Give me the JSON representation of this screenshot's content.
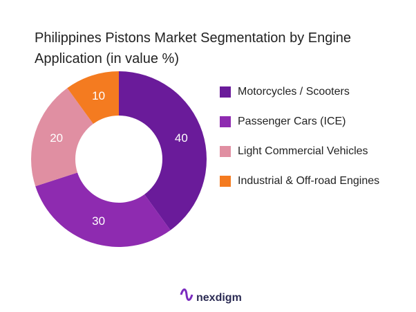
{
  "chart_data": {
    "type": "donut",
    "title": "Philippines Pistons Market Segmentation by Engine Application (in value %)",
    "categories": [
      "Motorcycles / Scooters",
      "Passenger Cars (ICE)",
      "Light Commercial Vehicles",
      "Industrial & Off-road Engines"
    ],
    "values": [
      40,
      30,
      20,
      10
    ],
    "colors": [
      "#6a1b9a",
      "#8e2bb0",
      "#e08fa2",
      "#f47b20"
    ],
    "legend": "right"
  },
  "brand": "nexdigm"
}
